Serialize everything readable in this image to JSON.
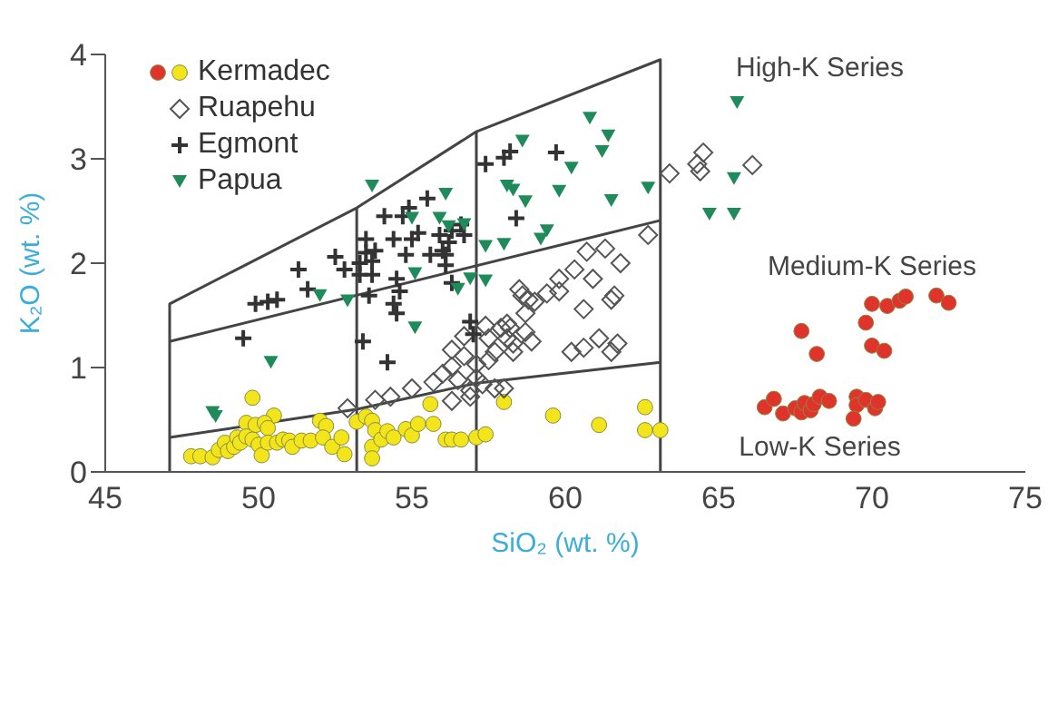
{
  "chart_data": {
    "type": "scatter",
    "xlabel": "SiO₂ (wt. %)",
    "ylabel": "K₂O (wt. %)",
    "xlim": [
      45,
      75
    ],
    "xticks": [
      45,
      50,
      55,
      60,
      65,
      70,
      75
    ],
    "ylim": [
      0,
      4
    ],
    "yticks": [
      0,
      1,
      2,
      3,
      4
    ],
    "legend": "top left",
    "annotations": [
      "High-K Series",
      "Medium-K Series",
      "Low-K Series"
    ],
    "series": [
      {
        "type": "line",
        "color": "#444444",
        "marker": "none",
        "x": [
          47.1,
          47.1,
          53.2,
          57.1,
          63.1,
          63.1
        ],
        "values": [
          0,
          1.61,
          2.53,
          3.26,
          3.95,
          0
        ]
      },
      {
        "type": "line",
        "color": "#444444",
        "marker": "none",
        "x": [
          53.2,
          53.2
        ],
        "values": [
          0,
          2.53
        ]
      },
      {
        "type": "line",
        "color": "#444444",
        "marker": "none",
        "x": [
          57.1,
          57.1
        ],
        "values": [
          0,
          3.26
        ]
      },
      {
        "type": "line",
        "color": "#444444",
        "marker": "none",
        "x": [
          47.1,
          63.1
        ],
        "values": [
          1.25,
          2.41
        ]
      },
      {
        "type": "line",
        "color": "#444444",
        "marker": "none",
        "x": [
          47.1,
          53.2,
          57.1,
          63.1
        ],
        "values": [
          0.33,
          0.6,
          0.85,
          1.05
        ]
      },
      {
        "name": "Kermadec",
        "marker": "circle",
        "x": [
          70.0,
          70.5,
          70.9,
          71.1,
          72.1,
          72.5,
          69.8,
          67.7,
          70.0,
          70.4,
          68.2,
          66.5,
          66.8,
          67.1,
          67.5,
          67.7,
          67.8,
          68.0,
          68.1,
          68.3,
          68.6,
          69.5,
          69.5,
          69.4,
          69.8,
          70.1,
          70.2,
          49.8,
          50.5,
          49.6,
          49.9,
          50.2,
          50.3,
          47.8,
          48.1,
          48.5,
          48.7,
          48.9,
          49.0,
          49.2,
          49.3,
          49.4,
          49.6,
          49.8,
          50.0,
          50.1,
          50.3,
          50.6,
          50.8,
          51.0,
          51.1,
          51.4,
          51.7,
          52.0,
          52.2,
          52.1,
          52.4,
          52.7,
          52.8,
          53.2,
          53.5,
          53.7,
          53.8,
          53.7,
          53.7,
          54.0,
          54.2,
          54.4,
          54.8,
          55.0,
          55.2,
          55.6,
          55.7,
          56.1,
          56.3,
          56.6,
          57.1,
          57.4,
          58.0,
          59.6,
          61.1,
          62.6,
          62.6,
          63.1
        ],
        "values": [
          1.61,
          1.59,
          1.64,
          1.68,
          1.69,
          1.62,
          1.43,
          1.35,
          1.21,
          1.16,
          1.13,
          0.62,
          0.7,
          0.56,
          0.61,
          0.57,
          0.66,
          0.59,
          0.65,
          0.72,
          0.68,
          0.72,
          0.64,
          0.51,
          0.69,
          0.61,
          0.67,
          0.71,
          0.54,
          0.47,
          0.45,
          0.47,
          0.42,
          0.15,
          0.15,
          0.14,
          0.21,
          0.28,
          0.2,
          0.24,
          0.33,
          0.28,
          0.34,
          0.31,
          0.26,
          0.16,
          0.28,
          0.28,
          0.31,
          0.3,
          0.24,
          0.3,
          0.3,
          0.49,
          0.44,
          0.33,
          0.24,
          0.33,
          0.17,
          0.48,
          0.53,
          0.49,
          0.4,
          0.24,
          0.13,
          0.31,
          0.39,
          0.33,
          0.41,
          0.35,
          0.46,
          0.65,
          0.46,
          0.31,
          0.31,
          0.31,
          0.33,
          0.36,
          0.67,
          0.54,
          0.45,
          0.62,
          0.4,
          0.4
        ],
        "colors": [
          "#e0332b",
          "#e0332b",
          "#e0332b",
          "#e0332b",
          "#e0332b",
          "#e0332b",
          "#e0332b",
          "#e0332b",
          "#e0332b",
          "#e0332b",
          "#e0332b",
          "#e0332b",
          "#e0332b",
          "#e0332b",
          "#e0332b",
          "#e0332b",
          "#e0332b",
          "#e0332b",
          "#e0332b",
          "#e0332b",
          "#e0332b",
          "#e0332b",
          "#e0332b",
          "#e0332b",
          "#e0332b",
          "#e0332b",
          "#e0332b",
          "#f2e51c",
          "#f2e51c",
          "#f2e51c",
          "#f2e51c",
          "#f2e51c",
          "#f2e51c",
          "#f2e51c",
          "#f2e51c",
          "#f2e51c",
          "#f2e51c",
          "#f2e51c",
          "#f2e51c",
          "#f2e51c",
          "#f2e51c",
          "#f2e51c",
          "#f2e51c",
          "#f2e51c",
          "#f2e51c",
          "#f2e51c",
          "#f2e51c",
          "#f2e51c",
          "#f2e51c",
          "#f2e51c",
          "#f2e51c",
          "#f2e51c",
          "#f2e51c",
          "#f2e51c",
          "#f2e51c",
          "#f2e51c",
          "#f2e51c",
          "#f2e51c",
          "#f2e51c",
          "#f2e51c",
          "#f2e51c",
          "#f2e51c",
          "#f2e51c",
          "#f2e51c",
          "#f2e51c",
          "#f2e51c",
          "#f2e51c",
          "#f2e51c",
          "#f2e51c",
          "#f2e51c",
          "#f2e51c",
          "#f2e51c",
          "#f2e51c",
          "#f2e51c",
          "#f2e51c",
          "#f2e51c",
          "#f2e51c",
          "#f2e51c",
          "#f2e51c",
          "#f2e51c",
          "#f2e51c",
          "#f2e51c",
          "#f2e51c",
          "#f2e51c"
        ]
      },
      {
        "name": "Ruapehu",
        "marker": "diamond",
        "color": "#555555",
        "x": [
          63.4,
          64.5,
          64.3,
          64.4,
          66.1,
          62.7,
          60.7,
          61.3,
          61.8,
          58.5,
          59.8,
          60.3,
          60.9,
          59.4,
          59.0,
          59.8,
          60.6,
          61.5,
          61.6,
          58.2,
          58.7,
          58.1,
          58.9,
          58.3,
          60.2,
          61.1,
          60.6,
          61.5,
          61.7,
          58.0,
          52.9,
          53.8,
          54.3,
          55.0,
          55.7,
          56.0,
          56.3,
          56.3,
          56.7,
          56.5,
          56.9,
          57.1,
          57.3,
          57.7,
          57.1,
          57.5,
          57.7,
          56.7,
          57.4,
          57.9,
          58.3,
          58.6,
          58.8,
          58.7,
          58.1,
          57.5,
          56.3,
          56.9
        ],
        "values": [
          2.86,
          3.06,
          2.95,
          2.88,
          2.94,
          2.27,
          2.11,
          2.14,
          2.0,
          1.75,
          1.85,
          1.94,
          1.85,
          1.71,
          1.63,
          1.73,
          1.56,
          1.65,
          1.69,
          1.38,
          1.34,
          1.28,
          1.25,
          1.15,
          1.15,
          1.28,
          1.19,
          1.15,
          1.23,
          0.8,
          0.61,
          0.69,
          0.72,
          0.8,
          0.86,
          0.94,
          1.01,
          1.17,
          1.11,
          0.88,
          0.78,
          0.9,
          0.84,
          0.8,
          1.03,
          1.07,
          1.15,
          1.3,
          1.4,
          1.38,
          1.23,
          1.69,
          1.65,
          1.52,
          1.42,
          1.28,
          0.68,
          0.72
        ]
      },
      {
        "name": "Egmont",
        "marker": "cross",
        "color": "#333333",
        "x": [
          59.7,
          58.4,
          57.4,
          58.0,
          58.2,
          55.5,
          54.9,
          54.7,
          54.1,
          53.5,
          53.8,
          54.4,
          55.0,
          55.2,
          55.9,
          56.2,
          56.3,
          56.7,
          56.0,
          56.6,
          53.5,
          52.5,
          52.8,
          53.3,
          53.7,
          53.3,
          53.7,
          54.5,
          54.6,
          53.6,
          54.4,
          54.5,
          54.8,
          55.6,
          56.1,
          56.1,
          56.3,
          51.3,
          51.6,
          49.9,
          50.3,
          50.6,
          49.5,
          53.4,
          54.2,
          56.9,
          57.0
        ],
        "values": [
          3.06,
          2.43,
          2.95,
          3.01,
          3.07,
          2.62,
          2.53,
          2.45,
          2.45,
          2.23,
          2.12,
          2.23,
          2.23,
          2.29,
          2.27,
          2.2,
          2.31,
          2.27,
          2.12,
          2.37,
          2.1,
          2.06,
          1.94,
          2.0,
          2.02,
          1.89,
          1.89,
          1.85,
          1.73,
          1.69,
          1.61,
          1.52,
          2.08,
          2.08,
          2.08,
          1.98,
          1.81,
          1.94,
          1.75,
          1.61,
          1.63,
          1.65,
          1.28,
          1.25,
          1.05,
          1.44,
          1.32
        ]
      },
      {
        "name": "Papua",
        "marker": "triangle",
        "color": "#1f8a5a",
        "x": [
          53.7,
          56.1,
          55.0,
          55.9,
          56.2,
          56.7,
          58.6,
          58.1,
          58.3,
          58.7,
          57.4,
          58.0,
          60.8,
          61.4,
          61.2,
          60.2,
          59.8,
          61.5,
          62.7,
          59.4,
          59.2,
          65.6,
          65.5,
          64.7,
          65.5,
          55.1,
          52.9,
          52.0,
          55.1,
          50.4,
          48.5,
          48.6,
          56.9,
          57.4,
          56.5
        ],
        "values": [
          2.74,
          2.66,
          2.43,
          2.43,
          2.35,
          2.37,
          3.17,
          2.74,
          2.7,
          2.59,
          2.16,
          2.18,
          3.39,
          3.22,
          3.07,
          2.91,
          2.69,
          2.6,
          2.72,
          2.31,
          2.23,
          3.54,
          2.81,
          2.47,
          2.47,
          1.9,
          1.64,
          1.69,
          1.38,
          1.05,
          0.57,
          0.53,
          1.85,
          1.83,
          1.75
        ]
      }
    ]
  }
}
